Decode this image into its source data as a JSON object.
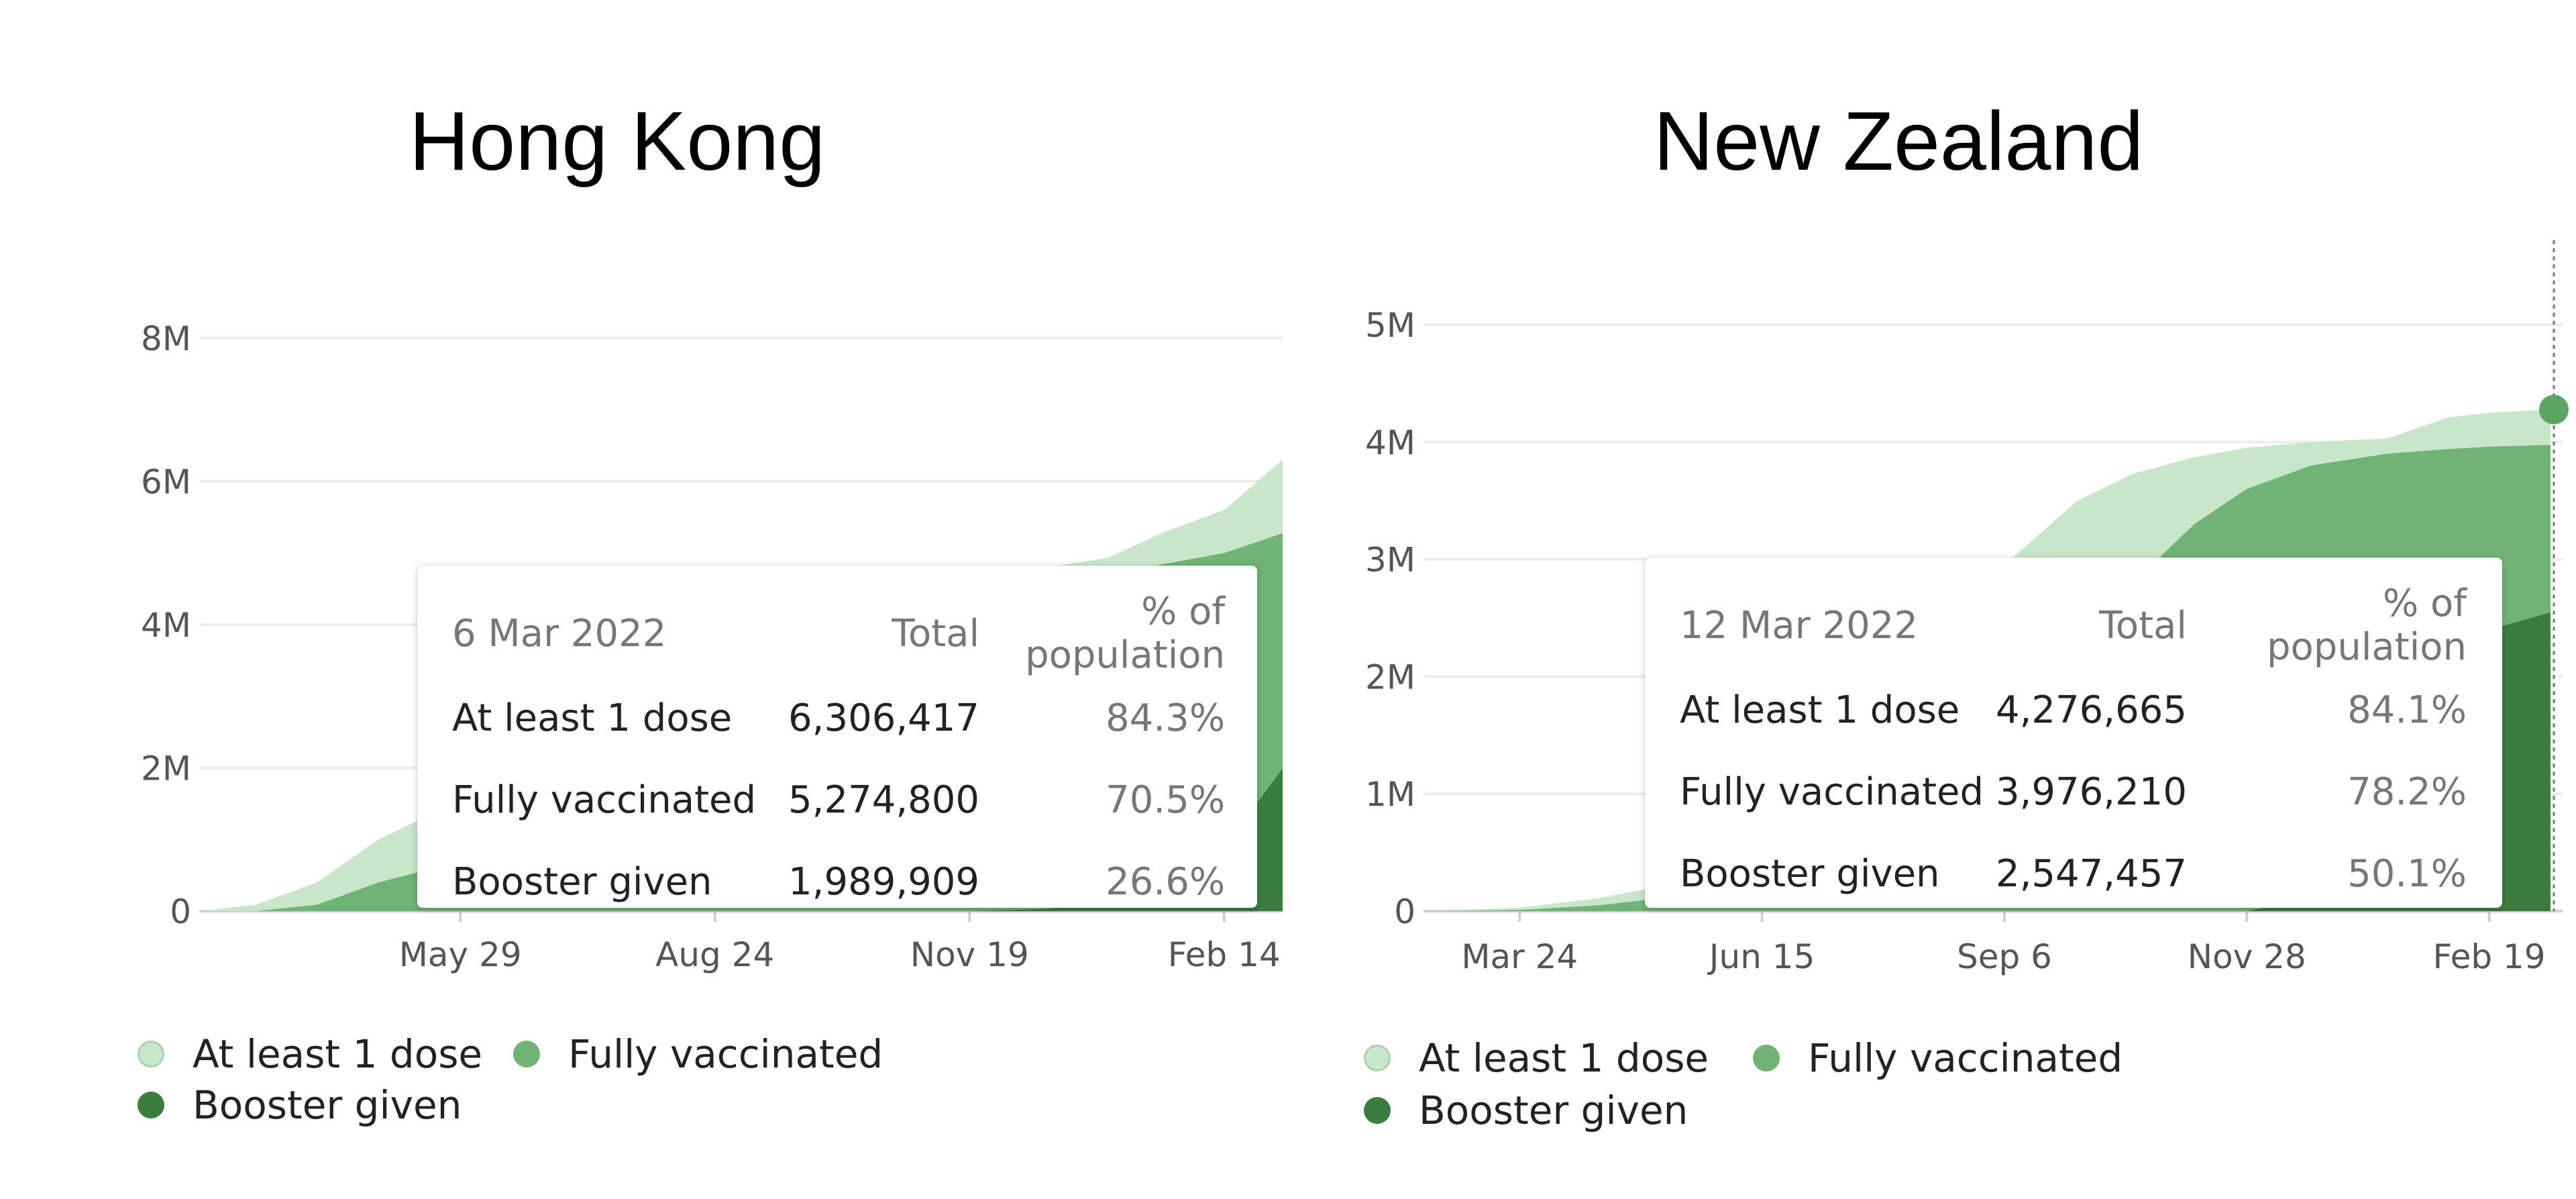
{
  "chart_data": [
    {
      "type": "area",
      "title": "Hong Kong",
      "x": [
        "2021-03-01",
        "2021-03-20",
        "2021-04-10",
        "2021-05-01",
        "2021-05-29",
        "2021-06-20",
        "2021-07-15",
        "2021-08-24",
        "2021-09-20",
        "2021-10-20",
        "2021-11-19",
        "2021-12-15",
        "2022-01-05",
        "2022-01-25",
        "2022-02-14",
        "2022-03-06"
      ],
      "xticks": [
        "May 29",
        "Aug 24",
        "Nov 19",
        "Feb 14"
      ],
      "yticks": [
        "0",
        "2M",
        "4M",
        "6M",
        "8M"
      ],
      "ylim": [
        0,
        8000000
      ],
      "series": [
        {
          "name": "At least 1 dose",
          "color": "#c8e6c9",
          "values": [
            0,
            90000,
            400000,
            1000000,
            1550000,
            2300000,
            3000000,
            3700000,
            4200000,
            4550000,
            4700000,
            4800000,
            4930000,
            5300000,
            5600000,
            6306417
          ]
        },
        {
          "name": "Fully vaccinated",
          "color": "#6fb474",
          "values": [
            0,
            0,
            90000,
            400000,
            700000,
            1200000,
            1900000,
            2800000,
            3500000,
            4000000,
            4350000,
            4550000,
            4700000,
            4850000,
            5000000,
            5274800
          ]
        },
        {
          "name": "Booster given",
          "color": "#3b7d3f",
          "values": [
            0,
            0,
            0,
            0,
            0,
            0,
            0,
            0,
            0,
            0,
            0,
            30000,
            120000,
            350000,
            900000,
            1989909
          ]
        }
      ],
      "tooltip": {
        "date": "6 Mar 2022",
        "col_total": "Total",
        "col_pct": "% of population",
        "rows": [
          {
            "label": "At least 1 dose",
            "total": "6,306,417",
            "pct": "84.3%"
          },
          {
            "label": "Fully vaccinated",
            "total": "5,274,800",
            "pct": "70.5%"
          },
          {
            "label": "Booster given",
            "total": "1,989,909",
            "pct": "26.6%"
          }
        ]
      },
      "legend": [
        "At least 1 dose",
        "Fully vaccinated",
        "Booster given"
      ]
    },
    {
      "type": "area",
      "title": "New Zealand",
      "x": [
        "2021-02-20",
        "2021-03-24",
        "2021-04-20",
        "2021-05-15",
        "2021-06-15",
        "2021-07-15",
        "2021-08-10",
        "2021-09-06",
        "2021-10-01",
        "2021-10-20",
        "2021-11-10",
        "2021-11-28",
        "2021-12-20",
        "2022-01-15",
        "2022-02-05",
        "2022-02-19",
        "2022-03-12"
      ],
      "xticks": [
        "Mar 24",
        "Jun 15",
        "Sep 6",
        "Nov 28",
        "Feb 19"
      ],
      "yticks": [
        "0",
        "1M",
        "2M",
        "3M",
        "4M",
        "5M"
      ],
      "ylim": [
        0,
        5000000
      ],
      "series": [
        {
          "name": "At least 1 dose",
          "color": "#c8e6c9",
          "values": [
            0,
            30000,
            110000,
            230000,
            500000,
            900000,
            1600000,
            2950000,
            3500000,
            3730000,
            3870000,
            3950000,
            4000000,
            4030000,
            4210000,
            4250000,
            4276665
          ]
        },
        {
          "name": "Fully vaccinated",
          "color": "#6fb474",
          "values": [
            0,
            10000,
            50000,
            120000,
            250000,
            450000,
            800000,
            1300000,
            1800000,
            2800000,
            3300000,
            3600000,
            3800000,
            3900000,
            3940000,
            3960000,
            3976210
          ]
        },
        {
          "name": "Booster given",
          "color": "#3b7d3f",
          "values": [
            0,
            0,
            0,
            0,
            0,
            0,
            0,
            0,
            0,
            0,
            0,
            0,
            100000,
            400000,
            1400000,
            2400000,
            2547457
          ]
        }
      ],
      "tooltip": {
        "date": "12 Mar 2022",
        "col_total": "Total",
        "col_pct": "% of population",
        "rows": [
          {
            "label": "At least 1 dose",
            "total": "4,276,665",
            "pct": "84.1%"
          },
          {
            "label": "Fully vaccinated",
            "total": "3,976,210",
            "pct": "78.2%"
          },
          {
            "label": "Booster given",
            "total": "2,547,457",
            "pct": "50.1%"
          }
        ]
      },
      "legend": [
        "At least 1 dose",
        "Fully vaccinated",
        "Booster given"
      ]
    }
  ]
}
